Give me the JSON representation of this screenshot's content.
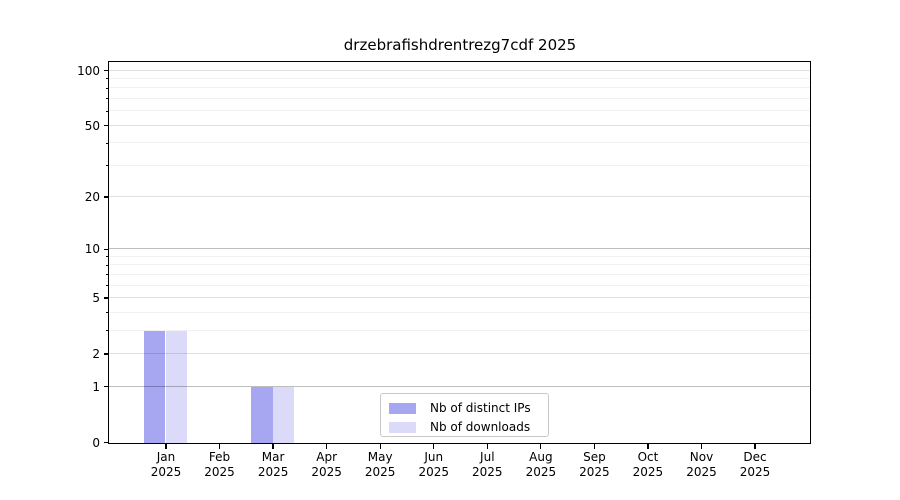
{
  "title": "drzebrafishdrentrezg7cdf 2025",
  "chart_data": {
    "type": "bar",
    "title": "drzebrafishdrentrezg7cdf 2025",
    "categories": [
      "Jan",
      "Feb",
      "Mar",
      "Apr",
      "May",
      "Jun",
      "Jul",
      "Aug",
      "Sep",
      "Oct",
      "Nov",
      "Dec"
    ],
    "year_label": "2025",
    "series": [
      {
        "name": "Nb of distinct IPs",
        "color": "#a6a6f1",
        "values": [
          3,
          0,
          1,
          0,
          0,
          0,
          0,
          0,
          0,
          0,
          0,
          0
        ]
      },
      {
        "name": "Nb of downloads",
        "color": "#dbdbf9",
        "values": [
          3,
          0,
          1,
          0,
          0,
          0,
          0,
          0,
          0,
          0,
          0,
          0
        ]
      }
    ],
    "xlabel": "",
    "ylabel": "",
    "yscale": "log10(1+y)",
    "ylim": [
      0,
      100
    ],
    "y_major_ticks": [
      0,
      1,
      2,
      5,
      10,
      20,
      50,
      100
    ],
    "y_minor_gridlines": [
      3,
      4,
      6,
      7,
      8,
      9,
      30,
      40,
      60,
      70,
      80,
      90
    ],
    "y_emphasized_gridlines": [
      1,
      10
    ],
    "grid": true,
    "legend_position": "inside lower center",
    "colors": {
      "grid_major": "rgba(0,0,0,0.12)",
      "grid_emphasized": "rgba(0,0,0,0.26)",
      "grid_minor": "rgba(0,0,0,0.055)",
      "axis": "#000000",
      "legend_border": "#c9c9c9"
    }
  }
}
